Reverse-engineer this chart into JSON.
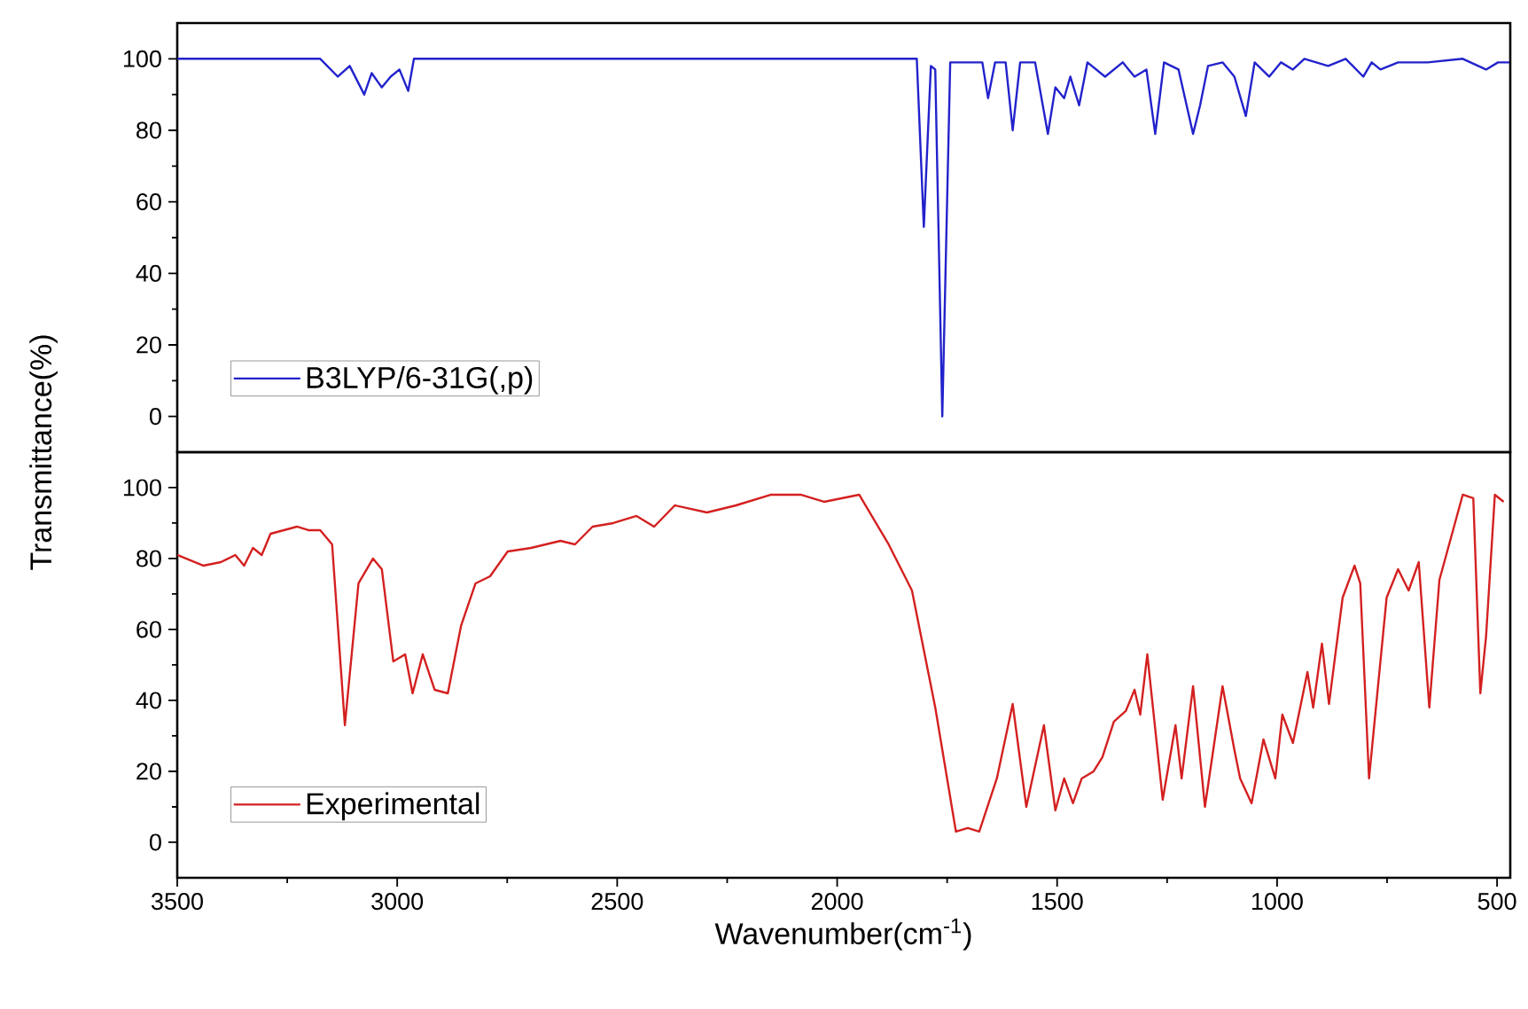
{
  "chart_data": [
    {
      "type": "line",
      "xlim": [
        3500,
        470
      ],
      "ylim": [
        -10,
        110
      ],
      "yticks": [
        0,
        20,
        40,
        60,
        80,
        100
      ],
      "tick_labels": "y",
      "legend": "bottom left",
      "series": [
        {
          "name": "B3LYP/6-31G(,p)",
          "color": "#2222cc",
          "x": [
            3500,
            3175,
            3135,
            3108,
            3075,
            3058,
            3035,
            3015,
            2995,
            2975,
            2962,
            1990,
            1819,
            1803,
            1787,
            1777,
            1761,
            1743,
            1670,
            1657,
            1641,
            1617,
            1601,
            1584,
            1550,
            1521,
            1504,
            1484,
            1470,
            1450,
            1431,
            1391,
            1351,
            1324,
            1297,
            1277,
            1257,
            1224,
            1191,
            1175,
            1157,
            1124,
            1097,
            1071,
            1051,
            1018,
            991,
            964,
            938,
            884,
            844,
            804,
            785,
            765,
            725,
            658,
            578,
            525,
            498,
            472
          ],
          "values": [
            100,
            100,
            95,
            98,
            90,
            96,
            92,
            95,
            97,
            91,
            100,
            100,
            100,
            53,
            98,
            97,
            0,
            99,
            99,
            89,
            99,
            99,
            80,
            99,
            99,
            79,
            92,
            89,
            95,
            87,
            99,
            95,
            99,
            95,
            97,
            79,
            99,
            97,
            79,
            87,
            98,
            99,
            95,
            84,
            99,
            95,
            99,
            97,
            100,
            98,
            100,
            95,
            99,
            97,
            99,
            99,
            100,
            97,
            99,
            99
          ]
        }
      ]
    },
    {
      "type": "line",
      "xlim": [
        3500,
        470
      ],
      "ylim": [
        -10,
        110
      ],
      "xticks": [
        3500,
        3000,
        2500,
        2000,
        1500,
        1000,
        500
      ],
      "yticks": [
        0,
        20,
        40,
        60,
        80,
        100
      ],
      "xlabel": "Wavenumber(cm$^{-1}$)",
      "ylabel": "Transmittance(%)",
      "legend": "bottom left",
      "series": [
        {
          "name": "Experimental",
          "color": "#d42020",
          "x": [
            3500,
            3441,
            3401,
            3368,
            3348,
            3328,
            3308,
            3288,
            3228,
            3202,
            3175,
            3148,
            3119,
            3088,
            3055,
            3035,
            3009,
            2982,
            2965,
            2942,
            2915,
            2885,
            2855,
            2822,
            2789,
            2749,
            2696,
            2629,
            2596,
            2556,
            2509,
            2456,
            2416,
            2369,
            2296,
            2230,
            2150,
            2083,
            2030,
            1990,
            1950,
            1883,
            1830,
            1777,
            1730,
            1703,
            1677,
            1637,
            1601,
            1570,
            1530,
            1504,
            1484,
            1464,
            1444,
            1417,
            1397,
            1371,
            1344,
            1324,
            1311,
            1295,
            1260,
            1231,
            1217,
            1191,
            1164,
            1124,
            1097,
            1084,
            1058,
            1031,
            1004,
            988,
            964,
            931,
            918,
            898,
            882,
            851,
            824,
            811,
            791,
            751,
            725,
            701,
            678,
            654,
            631,
            578,
            554,
            538,
            525,
            505,
            485
          ],
          "values": [
            81,
            78,
            79,
            81,
            78,
            83,
            81,
            87,
            89,
            88,
            88,
            84,
            33,
            73,
            80,
            77,
            51,
            53,
            42,
            53,
            43,
            42,
            61,
            73,
            75,
            82,
            83,
            85,
            84,
            89,
            90,
            92,
            89,
            95,
            93,
            95,
            98,
            98,
            96,
            97,
            98,
            84,
            71,
            38,
            3,
            4,
            3,
            18,
            39,
            10,
            33,
            9,
            18,
            11,
            18,
            20,
            24,
            34,
            37,
            43,
            36,
            53,
            12,
            33,
            18,
            44,
            10,
            44,
            26,
            18,
            11,
            29,
            18,
            36,
            28,
            48,
            38,
            56,
            39,
            69,
            78,
            73,
            18,
            69,
            77,
            71,
            79,
            38,
            74,
            98,
            97,
            42,
            58,
            98,
            96
          ]
        }
      ]
    }
  ]
}
